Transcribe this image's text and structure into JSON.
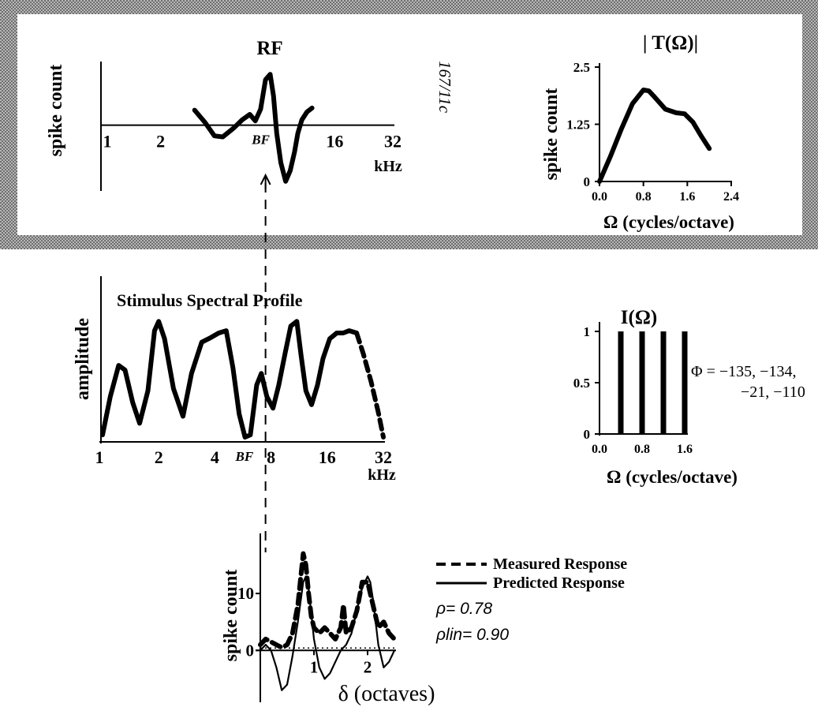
{
  "colors": {
    "ink": "#000000",
    "frame": "#8a8a8a",
    "background": "#ffffff"
  },
  "chart_data": [
    {
      "id": "rf",
      "type": "line",
      "title": "RF",
      "ylabel": "spike count",
      "xunit": "kHz",
      "xscale": "log2",
      "xlim": [
        1,
        32
      ],
      "ylim": [
        -1.2,
        1.1
      ],
      "xticks": [
        {
          "value": 1,
          "label": "1"
        },
        {
          "value": 2,
          "label": "2"
        },
        {
          "value": 16,
          "label": "16"
        },
        {
          "value": 32,
          "label": "32"
        }
      ],
      "bf_label": "BF",
      "bf_value": 7.0,
      "cell_id": "167/11c",
      "series": [
        {
          "style": "solid-thick",
          "x": [
            3.0,
            3.4,
            3.8,
            4.2,
            4.8,
            5.3,
            5.8,
            6.2,
            6.6,
            7.0,
            7.4,
            7.7,
            8.0,
            8.4,
            8.9,
            9.4,
            9.9,
            10.3,
            10.8,
            11.5,
            12.2
          ],
          "y": [
            0.28,
            0.05,
            -0.2,
            -0.22,
            -0.05,
            0.1,
            0.2,
            0.08,
            0.3,
            0.85,
            0.95,
            0.55,
            -0.15,
            -0.7,
            -1.05,
            -0.85,
            -0.5,
            -0.15,
            0.1,
            0.25,
            0.32
          ]
        }
      ]
    },
    {
      "id": "transfer",
      "type": "line",
      "title": "| T(Ω)|",
      "ylabel": "spike count",
      "xlabel": "Ω  (cycles/octave)",
      "xlim": [
        0,
        2.4
      ],
      "ylim": [
        0,
        2.5
      ],
      "xticks": [
        {
          "value": 0,
          "label": "0.0"
        },
        {
          "value": 0.8,
          "label": "0.8"
        },
        {
          "value": 1.6,
          "label": "1.6"
        },
        {
          "value": 2.4,
          "label": "2.4"
        }
      ],
      "yticks": [
        {
          "value": 0,
          "label": "0"
        },
        {
          "value": 1.25,
          "label": "1.25"
        },
        {
          "value": 2.5,
          "label": "2.5"
        }
      ],
      "series": [
        {
          "style": "solid-thick",
          "x": [
            0.0,
            0.2,
            0.4,
            0.6,
            0.8,
            0.9,
            1.0,
            1.2,
            1.4,
            1.55,
            1.7,
            1.85,
            2.0
          ],
          "y": [
            0.0,
            0.55,
            1.15,
            1.7,
            2.0,
            1.98,
            1.85,
            1.58,
            1.5,
            1.48,
            1.3,
            1.0,
            0.72
          ]
        }
      ]
    },
    {
      "id": "stimulus",
      "type": "line",
      "title": "Stimulus Spectral Profile",
      "ylabel": "amplitude",
      "xunit": "kHz",
      "xscale": "log2",
      "xlim": [
        1,
        32
      ],
      "ylim": [
        0,
        1.05
      ],
      "xticks": [
        {
          "value": 1,
          "label": "1"
        },
        {
          "value": 2,
          "label": "2"
        },
        {
          "value": 4,
          "label": "4"
        },
        {
          "value": 8,
          "label": "8"
        },
        {
          "value": 16,
          "label": "16"
        },
        {
          "value": 32,
          "label": "32"
        }
      ],
      "bf_label": "BF",
      "bf_value": 7.0,
      "series": [
        {
          "style": "solid-thick",
          "x": [
            1.0,
            1.1,
            1.22,
            1.32,
            1.45,
            1.58,
            1.75,
            1.9,
            2.0,
            2.15,
            2.4,
            2.7,
            3.0,
            3.4,
            3.8,
            4.2,
            4.6,
            5.0,
            5.4,
            5.8,
            6.2,
            6.7,
            7.1,
            7.6,
            8.2,
            8.8,
            9.5,
            10.2,
            11.0,
            11.6,
            12.3,
            13.2,
            14.2,
            15.2,
            16.5,
            18.0,
            19.5,
            21.0,
            23.0
          ],
          "y": [
            0.02,
            0.35,
            0.62,
            0.58,
            0.3,
            0.12,
            0.4,
            0.92,
            1.0,
            0.85,
            0.42,
            0.18,
            0.55,
            0.82,
            0.86,
            0.9,
            0.92,
            0.6,
            0.2,
            0.0,
            0.02,
            0.45,
            0.55,
            0.35,
            0.25,
            0.45,
            0.72,
            0.96,
            1.0,
            0.7,
            0.4,
            0.28,
            0.45,
            0.68,
            0.85,
            0.9,
            0.9,
            0.92,
            0.9
          ]
        },
        {
          "style": "dashed-thick",
          "x": [
            23.0,
            25.0,
            27.5,
            30.0,
            32.0
          ],
          "y": [
            0.9,
            0.72,
            0.48,
            0.22,
            0.0
          ]
        }
      ]
    },
    {
      "id": "ripple",
      "type": "bar",
      "title": "I(Ω)",
      "xlabel": "Ω  (cycles/octave)",
      "xlim": [
        0,
        1.6
      ],
      "ylim": [
        0,
        1
      ],
      "xticks": [
        {
          "value": 0,
          "label": "0.0"
        },
        {
          "value": 0.8,
          "label": "0.8"
        },
        {
          "value": 1.6,
          "label": "1.6"
        }
      ],
      "yticks": [
        {
          "value": 0,
          "label": "0"
        },
        {
          "value": 0.5,
          "label": "0.5"
        },
        {
          "value": 1,
          "label": "1"
        }
      ],
      "x": [
        0.4,
        0.8,
        1.2,
        1.6
      ],
      "values": [
        1,
        1,
        1,
        1
      ],
      "phase_label_1": "Φ = −135, −134,",
      "phase_label_2": "−21, −110"
    },
    {
      "id": "response",
      "type": "line",
      "ylabel": "spike count",
      "xlabel": "δ  (octaves)",
      "xlim": [
        0,
        2.5
      ],
      "ylim": [
        -8,
        20
      ],
      "xticks": [
        {
          "value": 1,
          "label": "1"
        },
        {
          "value": 2,
          "label": "2"
        }
      ],
      "yticks": [
        {
          "value": 0,
          "label": "0"
        },
        {
          "value": 10,
          "label": "10"
        }
      ],
      "legend": "right",
      "series": [
        {
          "name": "Measured Response",
          "style": "dashed-thick",
          "x": [
            0.0,
            0.1,
            0.2,
            0.3,
            0.4,
            0.5,
            0.6,
            0.7,
            0.8,
            0.85,
            0.9,
            0.95,
            1.0,
            1.1,
            1.2,
            1.3,
            1.4,
            1.5,
            1.55,
            1.6,
            1.7,
            1.8,
            1.9,
            2.0,
            2.05,
            2.1,
            2.2,
            2.3,
            2.4,
            2.5
          ],
          "y": [
            1,
            2,
            1.5,
            1,
            0.5,
            1,
            3,
            8,
            17,
            15,
            10,
            6,
            4,
            3,
            4,
            3,
            2,
            4,
            8,
            3,
            4,
            7,
            12,
            12,
            10,
            8,
            4,
            5,
            3,
            2
          ]
        },
        {
          "name": "Predicted Response",
          "style": "solid-thin",
          "x": [
            0.0,
            0.1,
            0.2,
            0.3,
            0.4,
            0.5,
            0.6,
            0.7,
            0.8,
            0.85,
            0.9,
            1.0,
            1.1,
            1.2,
            1.3,
            1.4,
            1.5,
            1.6,
            1.7,
            1.8,
            1.9,
            2.0,
            2.05,
            2.1,
            2.2,
            2.3,
            2.4,
            2.5
          ],
          "y": [
            0,
            1,
            0,
            -3,
            -7,
            -6,
            -1,
            5,
            12,
            13,
            11,
            2,
            -3,
            -5,
            -4,
            -2,
            0,
            1,
            3,
            7,
            11,
            13,
            12,
            9,
            1,
            -3,
            -2,
            0
          ]
        }
      ],
      "stats": [
        "ρ= 0.78",
        "ρlin= 0.90"
      ]
    }
  ]
}
